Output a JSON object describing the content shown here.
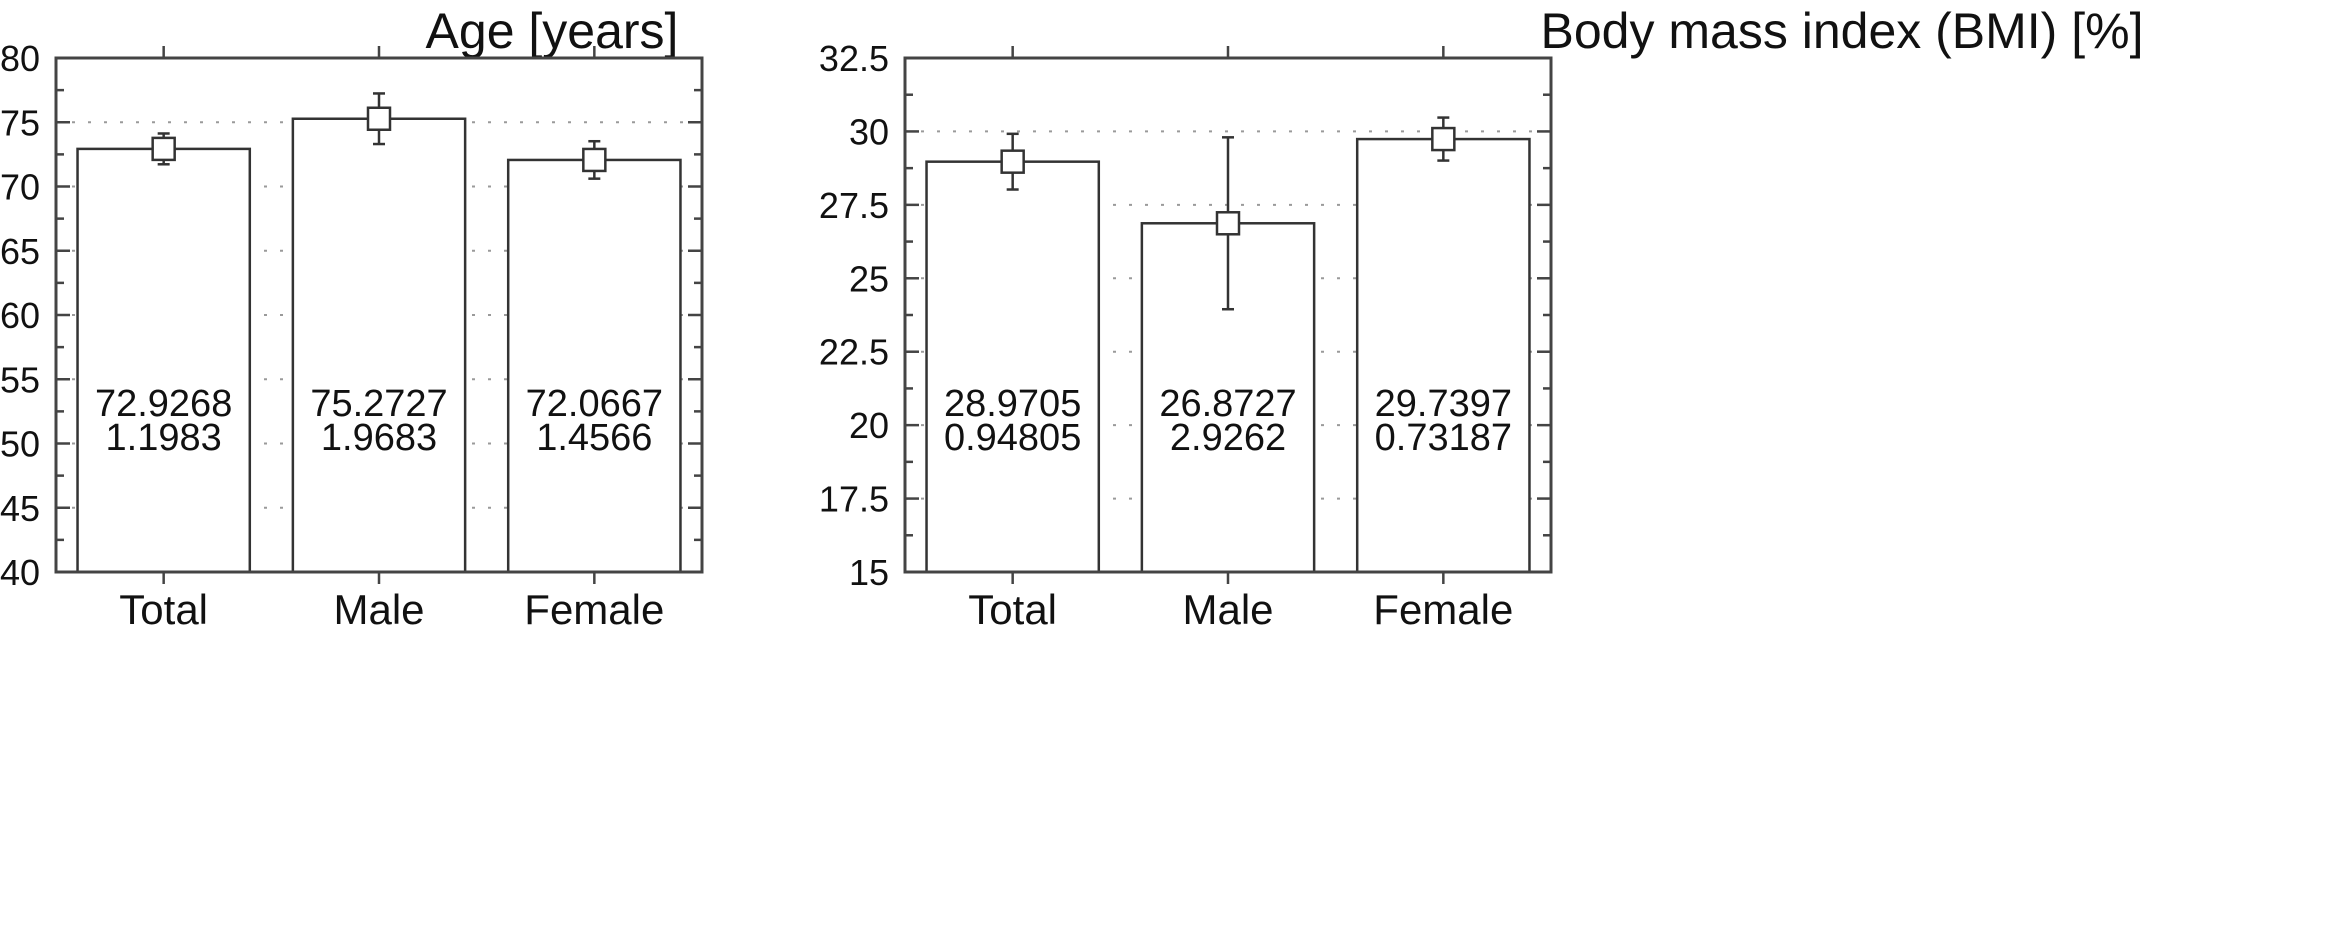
{
  "chart_data": [
    {
      "type": "bar",
      "title": "Age [years]",
      "categories": [
        "Total",
        "Male",
        "Female"
      ],
      "values": [
        72.9268,
        75.2727,
        72.0667
      ],
      "errors": [
        1.1983,
        1.9683,
        1.4566
      ],
      "value_labels": [
        "72.9268",
        "75.2727",
        "72.0667"
      ],
      "error_labels": [
        "1.1983",
        "1.9683",
        "1.4566"
      ],
      "ylim": [
        40,
        80
      ],
      "yticks": [
        40,
        45,
        50,
        55,
        60,
        65,
        70,
        75,
        80
      ],
      "ytick_labels": [
        "40",
        "45",
        "50",
        "55",
        "60",
        "65",
        "70",
        "75",
        "80"
      ],
      "grid": true
    },
    {
      "type": "bar",
      "title": "Body mass index (BMI) [%]",
      "categories": [
        "Total",
        "Male",
        "Female"
      ],
      "values": [
        28.9705,
        26.8727,
        29.7397
      ],
      "errors": [
        0.94805,
        2.9262,
        0.73187
      ],
      "value_labels": [
        "28.9705",
        "26.8727",
        "29.7397"
      ],
      "error_labels": [
        "0.94805",
        "2.9262",
        "0.73187"
      ],
      "ylim": [
        15,
        32.5
      ],
      "yticks": [
        15,
        17.5,
        20,
        22.5,
        25,
        27.5,
        30,
        32.5
      ],
      "ytick_labels": [
        "15",
        "17.5",
        "20",
        "22.5",
        "25",
        "27.5",
        "30",
        "32.5"
      ],
      "grid": true
    }
  ]
}
